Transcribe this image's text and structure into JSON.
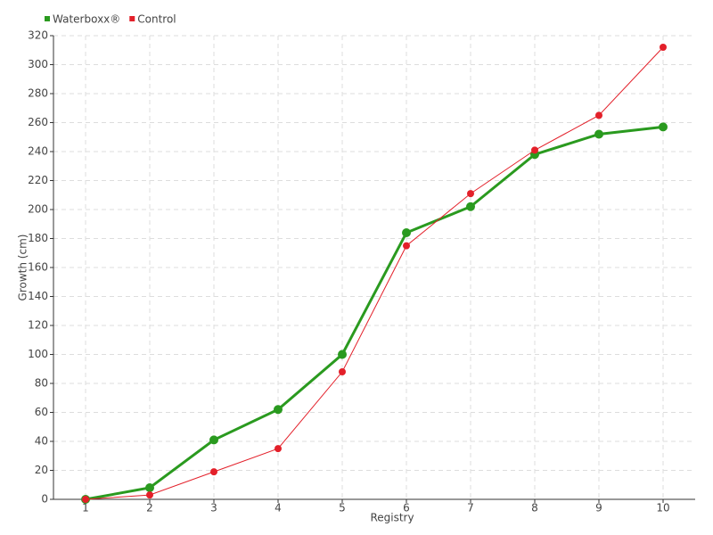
{
  "chart_data": {
    "type": "line",
    "x_label": "Registry",
    "y_label": "Growth (cm)",
    "categories": [
      "1",
      "2",
      "3",
      "4",
      "5",
      "6",
      "7",
      "8",
      "9",
      "10"
    ],
    "series": [
      {
        "name": "Waterboxx®",
        "color": "#2a9a1f",
        "values": [
          0,
          8,
          41,
          62,
          100,
          184,
          202,
          238,
          252,
          257
        ]
      },
      {
        "name": "Control",
        "color": "#e3202a",
        "values": [
          0,
          3,
          19,
          35,
          88,
          175,
          211,
          241,
          265,
          312
        ]
      }
    ],
    "ylim": [
      0,
      320
    ],
    "yticks": [
      0,
      20,
      40,
      60,
      80,
      100,
      120,
      140,
      160,
      180,
      200,
      220,
      240,
      260,
      280,
      300,
      320
    ],
    "grid": true,
    "legend": "top-left"
  }
}
